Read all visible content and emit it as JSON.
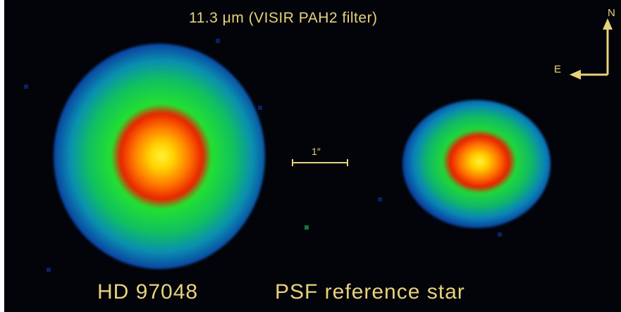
{
  "figure": {
    "title": "11.3 μm (VISIR PAH2 filter)",
    "targets": [
      {
        "name": "HD 97048"
      },
      {
        "name": "PSF reference star"
      }
    ],
    "scale_bar_label": "1″",
    "compass": {
      "north": "N",
      "east": "E"
    }
  },
  "colors": {
    "background": "#02040a",
    "annotation": "#e8d27a",
    "colormap": [
      "#0a1866",
      "#0b3aa0",
      "#0a8fb0",
      "#10c060",
      "#e82400",
      "#ff7a00",
      "#fff23a"
    ]
  }
}
